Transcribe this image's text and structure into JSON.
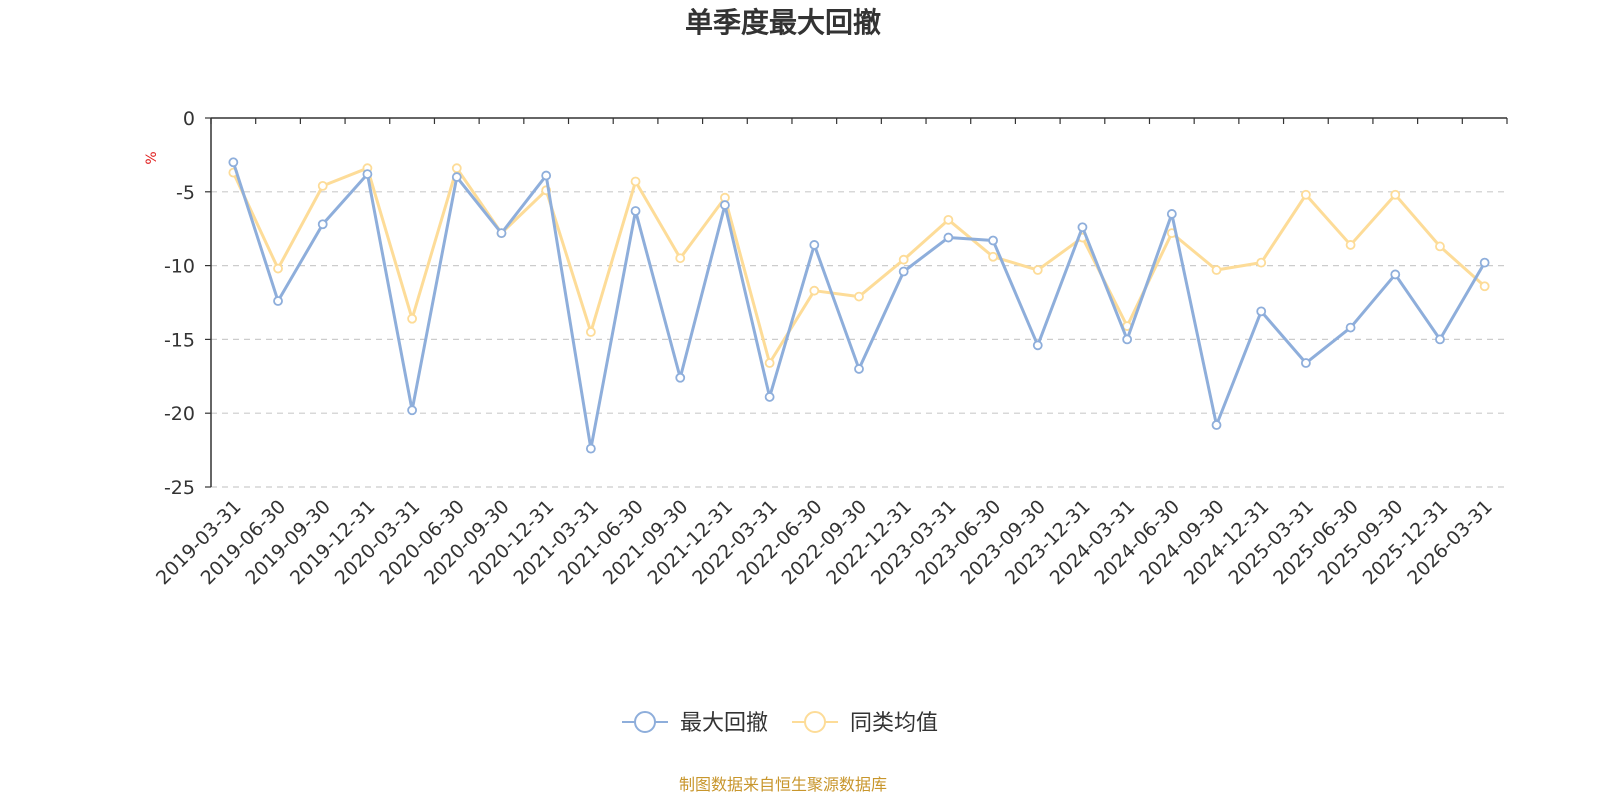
{
  "chart_data": {
    "type": "line",
    "title": "单季度最大回撤",
    "ylabel": "%",
    "ylim": [
      -25,
      0
    ],
    "yticks": [
      0,
      -5,
      -10,
      -15,
      -20,
      -25
    ],
    "grid": true,
    "legend_position": "bottom",
    "categories": [
      "2019-03-31",
      "2019-06-30",
      "2019-09-30",
      "2019-12-31",
      "2020-03-31",
      "2020-06-30",
      "2020-09-30",
      "2020-12-31",
      "2021-03-31",
      "2021-06-30",
      "2021-09-30",
      "2021-12-31",
      "2022-03-31",
      "2022-06-30",
      "2022-09-30",
      "2022-12-31",
      "2023-03-31",
      "2023-06-30",
      "2023-09-30",
      "2023-12-31",
      "2024-03-31",
      "2024-06-30",
      "2024-09-30",
      "2024-12-31",
      "2025-03-31",
      "2025-06-30",
      "2025-09-30",
      "2025-12-31",
      "2026-03-31"
    ],
    "series": [
      {
        "name": "最大回撤",
        "color": "#8eaedb",
        "values": [
          -3.0,
          -12.4,
          -7.2,
          -3.8,
          -19.8,
          -4.0,
          -7.8,
          -3.9,
          -22.4,
          -6.3,
          -17.6,
          -5.9,
          -18.9,
          -8.6,
          -17.0,
          -10.4,
          -8.1,
          -8.3,
          -15.4,
          -7.4,
          -15.0,
          -6.5,
          -20.8,
          -13.1,
          -16.6,
          -14.2,
          -10.6,
          -15.0,
          -9.8
        ]
      },
      {
        "name": "同类均值",
        "color": "#fddc98",
        "values": [
          -3.7,
          -10.2,
          -4.6,
          -3.4,
          -13.6,
          -3.4,
          -7.8,
          -4.9,
          -14.5,
          -4.3,
          -9.5,
          -5.4,
          -16.6,
          -11.7,
          -12.1,
          -9.6,
          -6.9,
          -9.4,
          -10.3,
          -8.1,
          -14.1,
          -7.8,
          -10.3,
          -9.8,
          -5.2,
          -8.6,
          -5.2,
          -8.7,
          -11.4
        ]
      }
    ]
  },
  "footer": "制图数据来自恒生聚源数据库"
}
